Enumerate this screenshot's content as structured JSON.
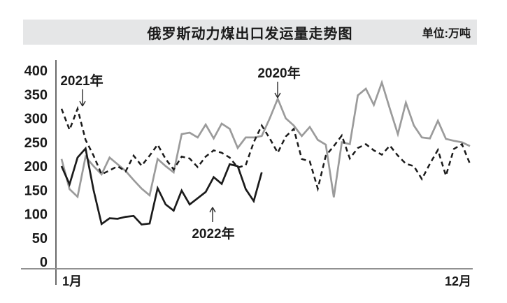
{
  "header": {
    "title": "俄罗斯动力煤出口发运量走势图",
    "unit": "单位:万吨"
  },
  "chart_data": {
    "type": "line",
    "title": "俄罗斯动力煤出口发运量走势图",
    "unit": "万吨",
    "x_axis": {
      "first_tick_label": "1月",
      "last_tick_label": "12月",
      "granularity": "weekly",
      "months": [
        1,
        12
      ]
    },
    "y_axis": {
      "min": 0,
      "max": 400,
      "ticks": [
        400,
        350,
        300,
        250,
        200,
        150,
        100,
        50,
        0
      ]
    },
    "series": [
      {
        "name": "2020年",
        "style": "solid",
        "color": "#9b9b9b",
        "start_week": 1,
        "values": [
          215,
          152,
          136,
          220,
          200,
          183,
          218,
          204,
          190,
          171,
          153,
          139,
          215,
          200,
          187,
          267,
          270,
          260,
          287,
          258,
          289,
          278,
          238,
          260,
          260,
          263,
          300,
          341,
          300,
          285,
          263,
          282,
          255,
          245,
          135,
          250,
          246,
          348,
          362,
          328,
          375,
          320,
          267,
          333,
          285,
          260,
          258,
          295,
          257,
          253,
          250,
          242
        ]
      },
      {
        "name": "2021年",
        "style": "dashed",
        "color": "#1b1b1b",
        "start_week": 1,
        "values": [
          320,
          276,
          320,
          255,
          222,
          183,
          191,
          200,
          189,
          222,
          201,
          222,
          245,
          215,
          193,
          220,
          216,
          198,
          220,
          233,
          228,
          218,
          197,
          202,
          250,
          285,
          258,
          228,
          262,
          278,
          215,
          210,
          153,
          222,
          242,
          264,
          216,
          238,
          246,
          233,
          224,
          243,
          222,
          205,
          200,
          173,
          205,
          234,
          180,
          236,
          246,
          205
        ]
      },
      {
        "name": "2022年",
        "style": "solid",
        "color": "#1b1b1b",
        "start_week": 1,
        "values": [
          200,
          162,
          218,
          237,
          150,
          79,
          91,
          90,
          94,
          96,
          78,
          80,
          154,
          120,
          107,
          149,
          120,
          133,
          146,
          177,
          163,
          204,
          200,
          152,
          127,
          187
        ]
      }
    ],
    "annotations": [
      {
        "text": "2021年",
        "points_to_series": "2021年",
        "arrow": "down"
      },
      {
        "text": "2020年",
        "points_to_series": "2020年",
        "arrow": "down"
      },
      {
        "text": "2022年",
        "points_to_series": "2022年",
        "arrow": "up"
      }
    ]
  }
}
